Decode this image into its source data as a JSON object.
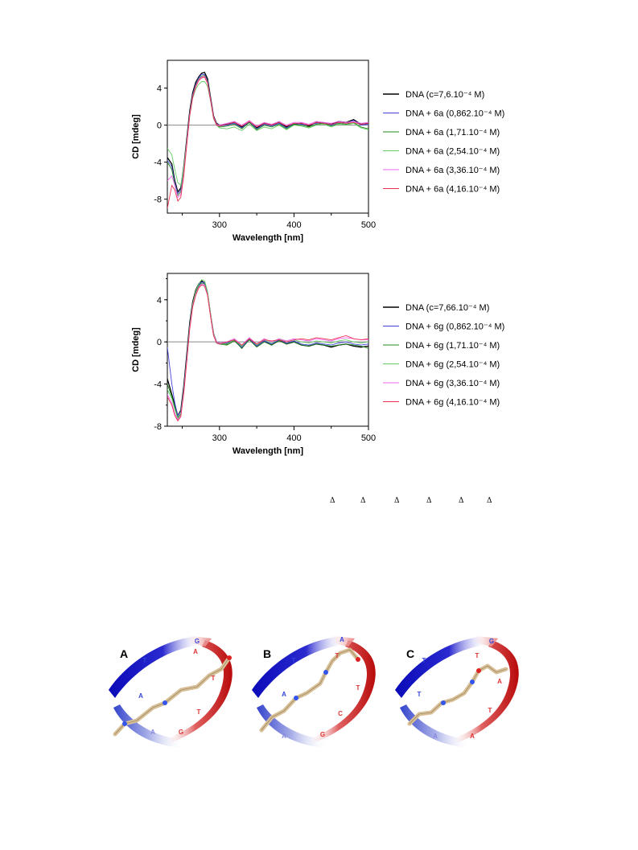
{
  "chart_data": [
    {
      "type": "line",
      "xlabel": "Wavelength [nm]",
      "ylabel": "CD [mdeg]",
      "xlim": [
        230,
        500
      ],
      "ylim": [
        -9.5,
        7
      ],
      "xticks": [
        "300",
        "400",
        "500"
      ],
      "yticks": [
        "4",
        "0",
        "-4",
        "-8"
      ],
      "ytick_values": [
        4,
        0,
        -4,
        -8
      ],
      "xtick_values": [
        300,
        400,
        500
      ],
      "legend": "right",
      "series": [
        {
          "name": "DNA (c=7,6.10⁻⁴ M)",
          "color": "#000000",
          "x": [
            230,
            236,
            240,
            244,
            248,
            252,
            256,
            260,
            264,
            268,
            272,
            276,
            280,
            284,
            288,
            292,
            296,
            300,
            310,
            320,
            330,
            340,
            350,
            360,
            370,
            380,
            390,
            400,
            410,
            420,
            430,
            440,
            450,
            460,
            470,
            480,
            490,
            500
          ],
          "y": [
            -3.5,
            -4.2,
            -6.0,
            -7.2,
            -6.8,
            -4.5,
            -1.5,
            1.5,
            3.5,
            4.6,
            5.2,
            5.6,
            5.7,
            5.0,
            3.0,
            1.0,
            0.2,
            0.0,
            0.1,
            0.3,
            -0.2,
            0.3,
            -0.3,
            0.2,
            0.0,
            0.3,
            -0.2,
            0.1,
            0.2,
            -0.1,
            0.3,
            0.2,
            0.1,
            0.4,
            0.3,
            0.6,
            0.1,
            0.2
          ]
        },
        {
          "name": "DNA + 6a (0,862.10⁻⁴ M)",
          "color": "#4444dd",
          "x": [
            230,
            236,
            240,
            244,
            248,
            252,
            256,
            260,
            264,
            268,
            272,
            276,
            280,
            284,
            288,
            292,
            296,
            300,
            310,
            320,
            330,
            340,
            350,
            360,
            370,
            380,
            390,
            400,
            410,
            420,
            430,
            440,
            450,
            460,
            470,
            480,
            490,
            500
          ],
          "y": [
            -3.8,
            -4.5,
            -6.2,
            -7.4,
            -7.0,
            -4.8,
            -1.7,
            1.3,
            3.3,
            4.4,
            5.1,
            5.5,
            5.5,
            4.8,
            2.9,
            0.9,
            0.1,
            -0.1,
            0.0,
            0.2,
            -0.3,
            0.4,
            -0.4,
            0.1,
            -0.1,
            0.2,
            -0.3,
            0.2,
            0.1,
            0.0,
            0.2,
            0.3,
            0.0,
            0.3,
            0.2,
            0.5,
            0.0,
            0.1
          ]
        },
        {
          "name": "DNA + 6a (1,71.10⁻⁴ M)",
          "color": "#228822",
          "x": [
            230,
            236,
            240,
            244,
            248,
            252,
            256,
            260,
            264,
            268,
            272,
            276,
            280,
            284,
            288,
            292,
            296,
            300,
            310,
            320,
            330,
            340,
            350,
            360,
            370,
            380,
            390,
            400,
            410,
            420,
            430,
            440,
            450,
            460,
            470,
            480,
            490,
            500
          ],
          "y": [
            -4.0,
            -4.8,
            -6.4,
            -7.6,
            -7.2,
            -5.0,
            -1.9,
            1.2,
            3.2,
            4.3,
            5.0,
            5.3,
            5.4,
            4.7,
            2.8,
            0.8,
            0.0,
            -0.2,
            -0.1,
            0.1,
            -0.4,
            0.3,
            -0.5,
            0.0,
            -0.2,
            0.1,
            -0.4,
            0.1,
            0.0,
            -0.2,
            0.1,
            0.2,
            -0.1,
            0.2,
            0.1,
            0.3,
            -0.2,
            -0.4
          ]
        },
        {
          "name": "DNA + 6a (2,54.10⁻⁴ M)",
          "color": "#66cc66",
          "x": [
            230,
            236,
            240,
            244,
            248,
            252,
            256,
            260,
            264,
            268,
            272,
            276,
            280,
            284,
            288,
            292,
            296,
            300,
            310,
            320,
            330,
            340,
            350,
            360,
            370,
            380,
            390,
            400,
            410,
            420,
            430,
            440,
            450,
            460,
            470,
            480,
            490,
            500
          ],
          "y": [
            -2.5,
            -3.2,
            -4.8,
            -6.2,
            -6.5,
            -4.6,
            -1.8,
            1.0,
            2.9,
            3.9,
            4.4,
            4.7,
            4.7,
            4.2,
            2.6,
            0.7,
            0.0,
            -0.3,
            -0.4,
            -0.2,
            -0.6,
            0.1,
            -0.6,
            -0.2,
            -0.4,
            0.0,
            -0.5,
            0.0,
            -0.1,
            -0.3,
            0.0,
            0.1,
            -0.2,
            0.1,
            0.0,
            0.2,
            -0.3,
            -0.5
          ]
        },
        {
          "name": "DNA + 6a (3,36.10⁻⁴ M)",
          "color": "#ee66ee",
          "x": [
            230,
            236,
            240,
            244,
            248,
            252,
            256,
            260,
            264,
            268,
            272,
            276,
            280,
            284,
            288,
            292,
            296,
            300,
            310,
            320,
            330,
            340,
            350,
            360,
            370,
            380,
            390,
            400,
            410,
            420,
            430,
            440,
            450,
            460,
            470,
            480,
            490,
            500
          ],
          "y": [
            -6.0,
            -5.5,
            -6.5,
            -7.8,
            -7.5,
            -5.2,
            -2.0,
            1.1,
            3.1,
            4.2,
            4.9,
            5.2,
            5.3,
            4.6,
            2.8,
            0.9,
            0.1,
            0.0,
            0.2,
            0.4,
            0.0,
            0.5,
            -0.1,
            0.3,
            0.1,
            0.4,
            0.0,
            0.3,
            0.3,
            0.1,
            0.4,
            0.3,
            0.2,
            0.4,
            0.3,
            0.4,
            0.2,
            0.3
          ]
        },
        {
          "name": "DNA + 6a (4,16.10⁻⁴ M)",
          "color": "#ee3355",
          "x": [
            230,
            236,
            240,
            244,
            248,
            252,
            256,
            260,
            264,
            268,
            272,
            276,
            280,
            284,
            288,
            292,
            296,
            300,
            310,
            320,
            330,
            340,
            350,
            360,
            370,
            380,
            390,
            400,
            410,
            420,
            430,
            440,
            450,
            460,
            470,
            480,
            490,
            500
          ],
          "y": [
            -9.0,
            -6.5,
            -7.0,
            -8.2,
            -7.8,
            -5.5,
            -2.2,
            1.0,
            3.0,
            4.1,
            4.8,
            5.1,
            5.2,
            4.5,
            2.7,
            0.8,
            0.0,
            -0.1,
            0.1,
            0.3,
            -0.1,
            0.4,
            -0.2,
            0.2,
            0.0,
            0.3,
            -0.1,
            0.2,
            0.2,
            0.0,
            0.3,
            0.2,
            0.1,
            0.3,
            0.2,
            0.3,
            0.1,
            0.2
          ]
        }
      ]
    },
    {
      "type": "line",
      "xlabel": "Wavelength [nm]",
      "ylabel": "CD [mdeg]",
      "xlim": [
        230,
        500
      ],
      "ylim": [
        -8,
        6.5
      ],
      "xticks": [
        "300",
        "400",
        "500"
      ],
      "yticks": [
        "4",
        "0",
        "-4",
        "-8"
      ],
      "ytick_values": [
        4,
        0,
        -4,
        -8
      ],
      "xtick_values": [
        300,
        400,
        500
      ],
      "legend": "right",
      "series": [
        {
          "name": "DNA (c=7,66.10⁻⁴ M)",
          "color": "#000000",
          "x": [
            230,
            236,
            240,
            244,
            248,
            252,
            256,
            260,
            264,
            268,
            272,
            276,
            280,
            284,
            288,
            292,
            296,
            300,
            310,
            320,
            330,
            340,
            350,
            360,
            370,
            380,
            390,
            400,
            410,
            420,
            430,
            440,
            450,
            460,
            470,
            480,
            490,
            500
          ],
          "y": [
            -3.5,
            -5.0,
            -6.0,
            -7.0,
            -6.5,
            -4.2,
            -1.2,
            1.8,
            3.8,
            4.9,
            5.5,
            5.8,
            5.6,
            4.6,
            2.6,
            0.8,
            0.0,
            -0.1,
            -0.2,
            0.2,
            -0.6,
            0.3,
            -0.4,
            0.1,
            -0.3,
            0.2,
            -0.2,
            0.0,
            -0.3,
            -0.4,
            -0.2,
            -0.3,
            -0.5,
            -0.3,
            -0.2,
            -0.4,
            -0.5,
            -0.4
          ]
        },
        {
          "name": "DNA + 6g (0,862.10⁻⁴ M)",
          "color": "#4444dd",
          "x": [
            230,
            236,
            240,
            244,
            248,
            252,
            256,
            260,
            264,
            268,
            272,
            276,
            280,
            284,
            288,
            292,
            296,
            300,
            310,
            320,
            330,
            340,
            350,
            360,
            370,
            380,
            390,
            400,
            410,
            420,
            430,
            440,
            450,
            460,
            470,
            480,
            490,
            500
          ],
          "y": [
            -0.5,
            -4.0,
            -5.8,
            -7.0,
            -6.6,
            -4.4,
            -1.4,
            1.6,
            3.6,
            4.7,
            5.4,
            5.7,
            5.6,
            4.6,
            2.6,
            0.7,
            -0.1,
            -0.2,
            -0.1,
            0.2,
            -0.5,
            0.3,
            -0.4,
            0.1,
            -0.2,
            0.2,
            -0.1,
            0.1,
            -0.2,
            -0.3,
            -0.1,
            -0.2,
            -0.3,
            -0.1,
            0.0,
            -0.2,
            -0.3,
            -0.2
          ]
        },
        {
          "name": "DNA + 6g (1,71.10⁻⁴ M)",
          "color": "#228822",
          "x": [
            230,
            236,
            240,
            244,
            248,
            252,
            256,
            260,
            264,
            268,
            272,
            276,
            280,
            284,
            288,
            292,
            296,
            300,
            310,
            320,
            330,
            340,
            350,
            360,
            370,
            380,
            390,
            400,
            410,
            420,
            430,
            440,
            450,
            460,
            470,
            480,
            490,
            500
          ],
          "y": [
            -4.0,
            -5.2,
            -6.2,
            -7.2,
            -6.8,
            -4.6,
            -1.6,
            1.5,
            3.5,
            4.6,
            5.3,
            5.6,
            5.5,
            4.5,
            2.5,
            0.7,
            -0.1,
            -0.2,
            -0.3,
            0.1,
            -0.6,
            0.2,
            -0.5,
            0.0,
            -0.3,
            0.1,
            -0.2,
            0.0,
            -0.3,
            -0.4,
            -0.2,
            -0.3,
            -0.4,
            -0.3,
            -0.2,
            -0.3,
            -0.4,
            -0.6
          ]
        },
        {
          "name": "DNA + 6g (2,54.10⁻⁴ M)",
          "color": "#66cc66",
          "x": [
            230,
            236,
            240,
            244,
            248,
            252,
            256,
            260,
            264,
            268,
            272,
            276,
            280,
            284,
            288,
            292,
            296,
            300,
            310,
            320,
            330,
            340,
            350,
            360,
            370,
            380,
            390,
            400,
            410,
            420,
            430,
            440,
            450,
            460,
            470,
            480,
            490,
            500
          ],
          "y": [
            -4.5,
            -5.4,
            -6.4,
            -7.3,
            -6.9,
            -4.7,
            -1.7,
            1.4,
            3.6,
            4.8,
            5.5,
            5.9,
            5.8,
            4.8,
            2.7,
            0.8,
            0.0,
            -0.1,
            -0.2,
            0.2,
            -0.4,
            0.4,
            -0.3,
            0.2,
            -0.1,
            0.3,
            0.0,
            0.2,
            0.0,
            -0.1,
            0.1,
            0.0,
            -0.1,
            0.1,
            0.2,
            0.0,
            -0.1,
            0.0
          ]
        },
        {
          "name": "DNA + 6g (3,36.10⁻⁴ M)",
          "color": "#ee66ee",
          "x": [
            230,
            236,
            240,
            244,
            248,
            252,
            256,
            260,
            264,
            268,
            272,
            276,
            280,
            284,
            288,
            292,
            296,
            300,
            310,
            320,
            330,
            340,
            350,
            360,
            370,
            380,
            390,
            400,
            410,
            420,
            430,
            440,
            450,
            460,
            470,
            480,
            490,
            500
          ],
          "y": [
            -5.0,
            -5.8,
            -6.8,
            -7.4,
            -7.0,
            -4.8,
            -1.8,
            1.3,
            3.4,
            4.5,
            5.2,
            5.5,
            5.4,
            4.5,
            2.5,
            0.7,
            0.0,
            -0.1,
            0.0,
            0.3,
            -0.3,
            0.4,
            -0.2,
            0.3,
            0.0,
            0.3,
            0.1,
            0.3,
            0.2,
            0.1,
            0.3,
            0.2,
            0.1,
            0.3,
            0.4,
            0.3,
            0.2,
            0.2
          ]
        },
        {
          "name": "DNA + 6g (4,16.10⁻⁴ M)",
          "color": "#ee3355",
          "x": [
            230,
            236,
            240,
            244,
            248,
            252,
            256,
            260,
            264,
            268,
            272,
            276,
            280,
            284,
            288,
            292,
            296,
            300,
            310,
            320,
            330,
            340,
            350,
            360,
            370,
            380,
            390,
            400,
            410,
            420,
            430,
            440,
            450,
            460,
            470,
            480,
            490,
            500
          ],
          "y": [
            -5.2,
            -6.0,
            -7.0,
            -7.5,
            -7.1,
            -4.9,
            -1.9,
            1.2,
            3.3,
            4.4,
            5.1,
            5.4,
            5.3,
            4.4,
            2.4,
            0.6,
            -0.1,
            -0.2,
            0.0,
            0.2,
            -0.3,
            0.3,
            -0.2,
            0.2,
            0.1,
            0.2,
            0.0,
            0.2,
            0.3,
            0.2,
            0.4,
            0.3,
            0.2,
            0.4,
            0.6,
            0.3,
            0.2,
            0.3
          ]
        }
      ]
    }
  ],
  "deltas": [
    "Δ",
    "Δ",
    "Δ",
    "Δ",
    "Δ",
    "Δ"
  ],
  "dna_figure": {
    "panels": [
      {
        "label": "A",
        "bases": [
          "G",
          "T",
          "A",
          "A",
          "A",
          "T",
          "T",
          "G"
        ]
      },
      {
        "label": "B",
        "bases": [
          "A",
          "T",
          "A",
          "A",
          "T",
          "T",
          "C",
          "G"
        ]
      },
      {
        "label": "C",
        "bases": [
          "G",
          "T",
          "T",
          "A",
          "T",
          "A",
          "T",
          "A"
        ]
      }
    ],
    "colors": {
      "strand1": "#1010cc",
      "strand2": "#cc1010",
      "ligand": "#d8bf96",
      "nitrogen": "#3355ee",
      "oxygen": "#dd2222"
    }
  }
}
